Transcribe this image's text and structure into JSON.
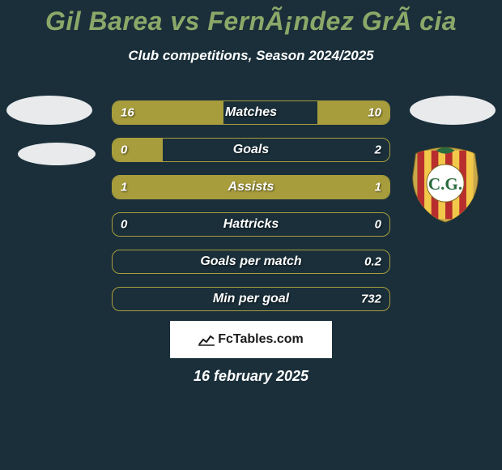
{
  "title": "Gil Barea vs FernÃ¡ndez GrÃ cia",
  "subtitle": "Club competitions, Season 2024/2025",
  "colors": {
    "background": "#1a2f3a",
    "accent": "#8ca869",
    "bar_fill": "#a89d3c",
    "text": "#ffffff",
    "shape": "#e8eaec",
    "badge_bg": "#ffffff",
    "badge_text": "#1a1a1a"
  },
  "stats": [
    {
      "label": "Matches",
      "left_value": "16",
      "right_value": "10",
      "left_fill_pct": 40,
      "right_fill_pct": 26
    },
    {
      "label": "Goals",
      "left_value": "0",
      "right_value": "2",
      "left_fill_pct": 18,
      "right_fill_pct": 0
    },
    {
      "label": "Assists",
      "left_value": "1",
      "right_value": "1",
      "left_fill_pct": 100,
      "right_fill_pct": 0
    },
    {
      "label": "Hattricks",
      "left_value": "0",
      "right_value": "0",
      "left_fill_pct": 0,
      "right_fill_pct": 0
    },
    {
      "label": "Goals per match",
      "left_value": "",
      "right_value": "0.2",
      "left_fill_pct": 0,
      "right_fill_pct": 0
    },
    {
      "label": "Min per goal",
      "left_value": "",
      "right_value": "732",
      "left_fill_pct": 0,
      "right_fill_pct": 0
    }
  ],
  "footer_brand": "FcTables.com",
  "date": "16 february 2025",
  "badge_colors": {
    "outer": "#c9a84a",
    "stripes_red": "#b82e2e",
    "stripes_yellow": "#f2c84b",
    "inner_bg": "#ffffff",
    "letters": "#2a6b3f"
  }
}
